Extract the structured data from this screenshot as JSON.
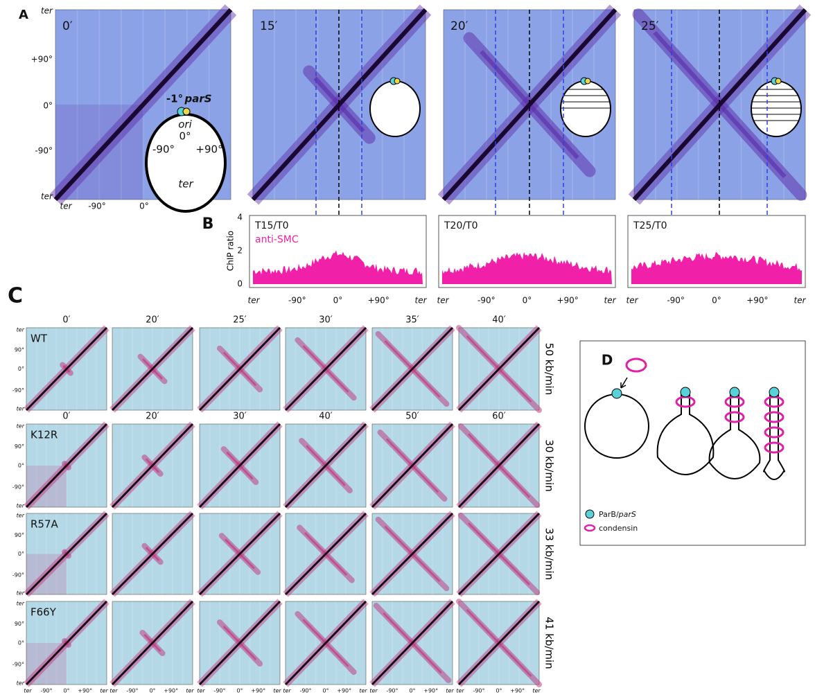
{
  "panel_a": {
    "label": "A",
    "times": [
      "0′",
      "15′",
      "20′",
      "25′"
    ],
    "y_ticks": [
      "ter",
      "+90°",
      "0°",
      "-90°",
      "ter"
    ],
    "x_ticks": [
      "ter",
      "-90°",
      "0°",
      "+9"
    ],
    "inset": {
      "pars_angle": "-1°",
      "pars_name": "parS",
      "ori": "ori",
      "zero": "0°",
      "minus": "-90°",
      "plus": "+90°",
      "ter": "ter"
    }
  },
  "panel_b": {
    "label": "B",
    "y_label": "ChIP ratio",
    "y_ticks": [
      4,
      2,
      0
    ],
    "x_ticks": [
      "ter",
      "-90°",
      "0°",
      "+90°",
      "ter"
    ],
    "plots": [
      {
        "title": "T15/T0",
        "subtitle": "anti-SMC"
      },
      {
        "title": "T20/T0"
      },
      {
        "title": "T25/T0"
      }
    ]
  },
  "panel_c": {
    "label": "C",
    "y_ticks": [
      "ter",
      "90°",
      "0°",
      "-90°",
      "ter"
    ],
    "x_ticks": [
      "ter",
      "-90°",
      "0°",
      "+90°",
      "ter"
    ],
    "rows": [
      {
        "strain": "WT",
        "rate": "50 kb/min",
        "times": [
          "0′",
          "20′",
          "25′",
          "30′",
          "35′",
          "40′"
        ]
      },
      {
        "strain": "K12R",
        "rate": "30 kb/min",
        "times": [
          "0′",
          "20′",
          "30′",
          "40′",
          "50′",
          "60′"
        ]
      },
      {
        "strain": "R57A",
        "rate": "33 kb/min"
      },
      {
        "strain": "F66Y",
        "rate": "41 kb/min"
      }
    ]
  },
  "panel_d": {
    "label": "D",
    "parb": "ParB/",
    "pars": "parS",
    "condensin": "condensin"
  }
}
